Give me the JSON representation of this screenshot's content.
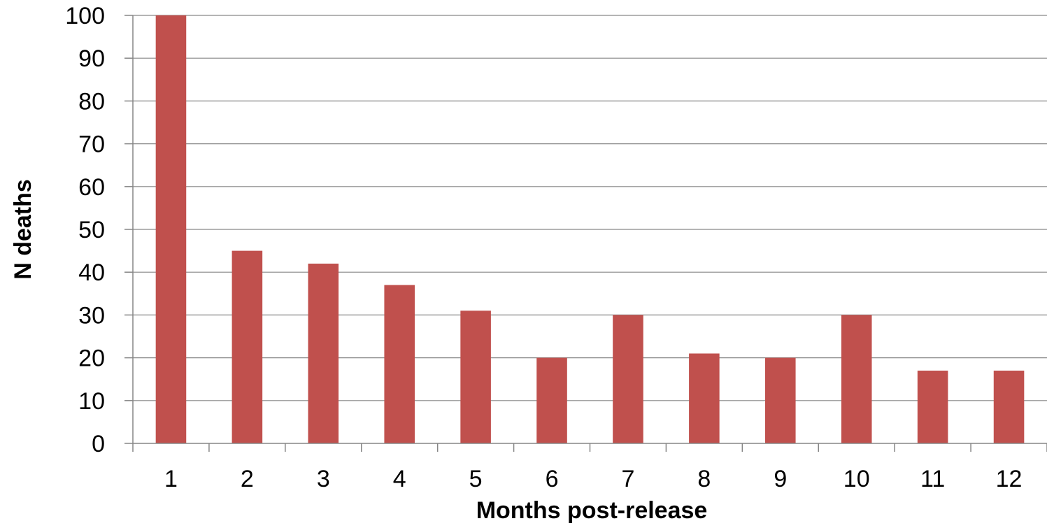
{
  "chart_data": {
    "type": "bar",
    "categories": [
      "1",
      "2",
      "3",
      "4",
      "5",
      "6",
      "7",
      "8",
      "9",
      "10",
      "11",
      "12"
    ],
    "values": [
      100,
      45,
      42,
      37,
      31,
      20,
      30,
      21,
      20,
      30,
      17,
      17
    ],
    "title": "",
    "xlabel": "Months post-release",
    "ylabel": "N deaths",
    "ylim": [
      0,
      100
    ],
    "yticks": [
      0,
      10,
      20,
      30,
      40,
      50,
      60,
      70,
      80,
      90,
      100
    ],
    "grid": "horizontal",
    "legend": "none",
    "bar_color": "#C0504D",
    "grid_color": "#868686",
    "axis_color": "#868686"
  }
}
